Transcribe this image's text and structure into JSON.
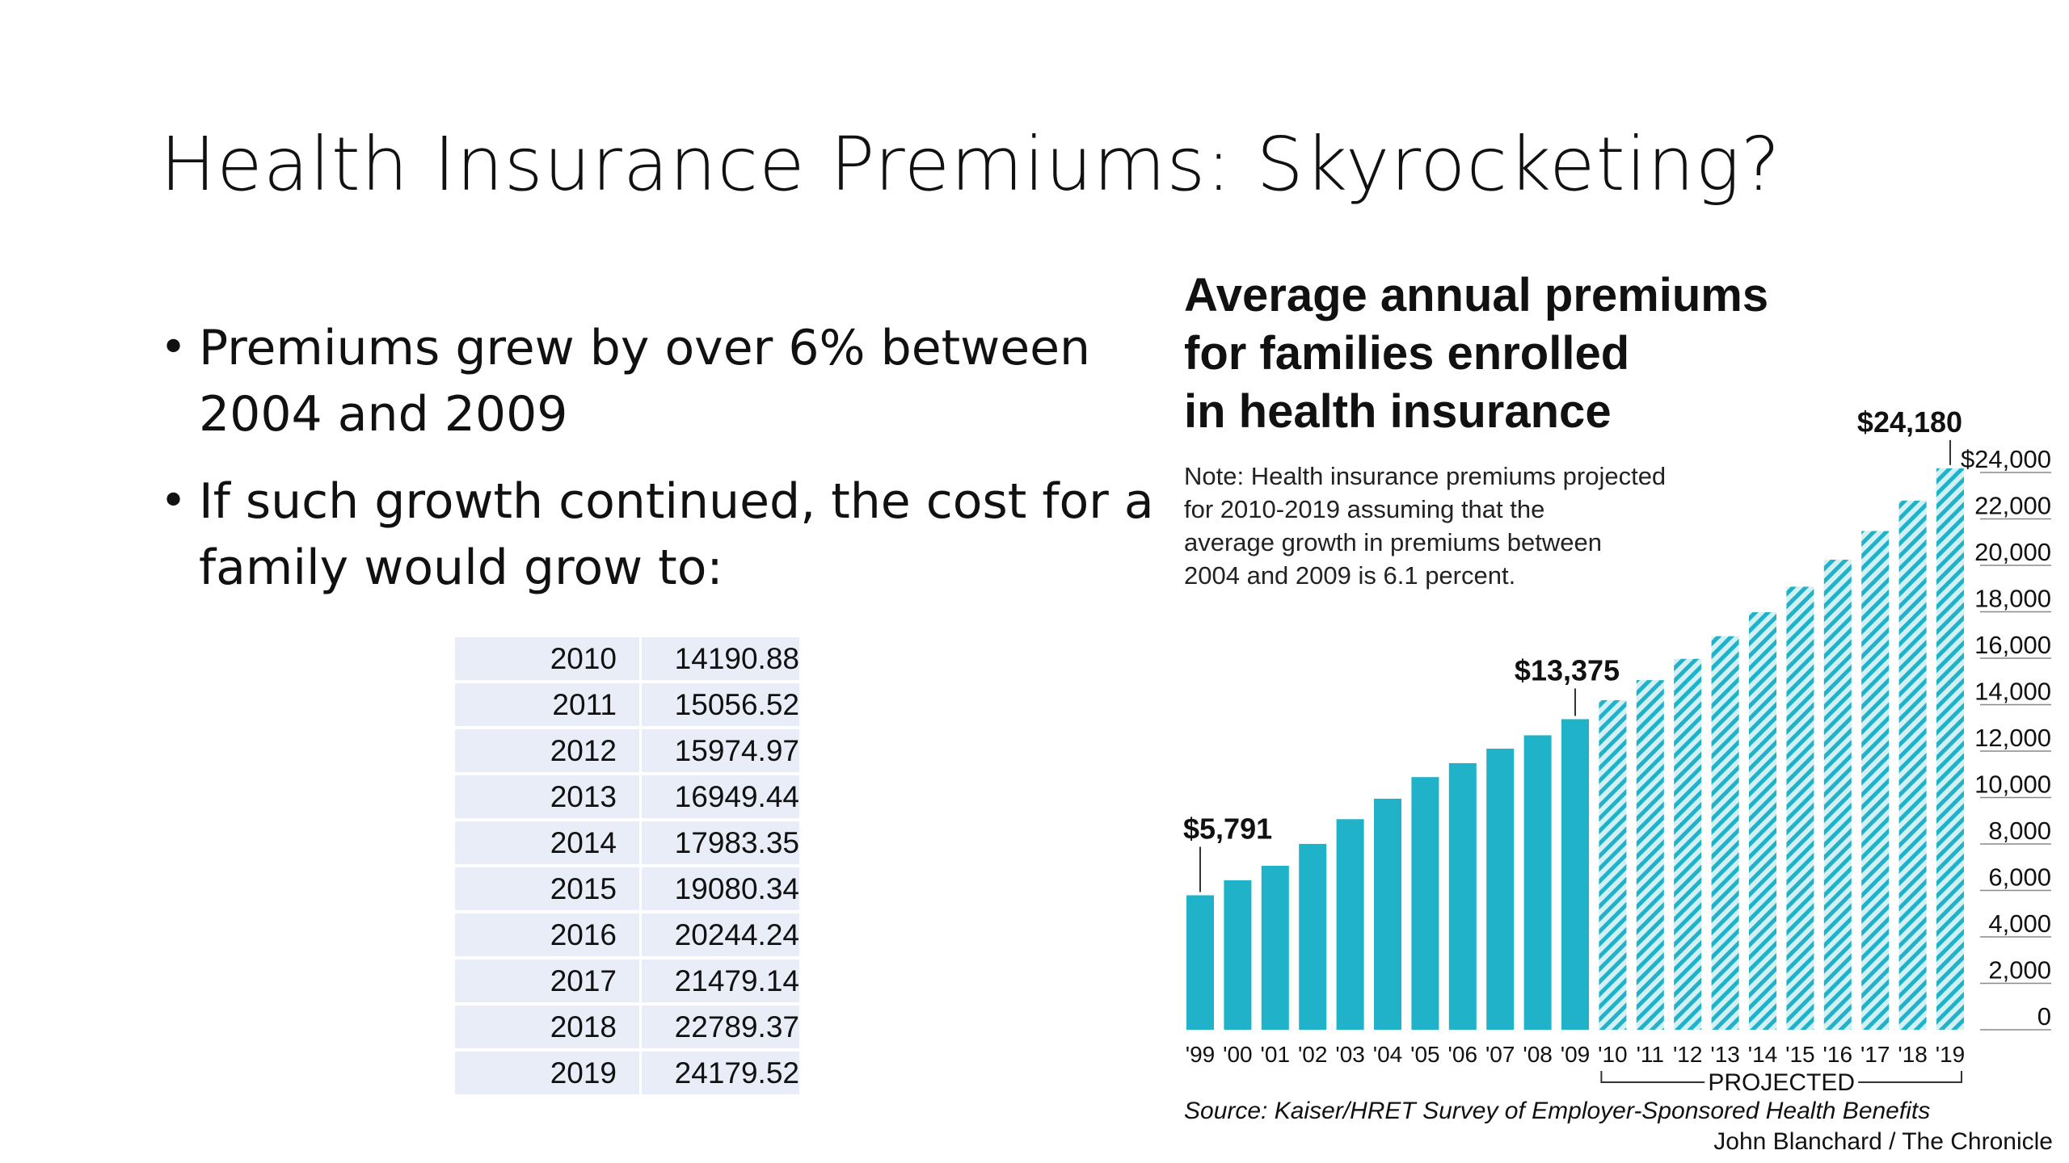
{
  "slide": {
    "title": "Health Insurance Premiums: Skyrocketing?",
    "bullets": [
      "Premiums grew by over 6% between 2004 and 2009",
      "If such growth continued, the cost for a family would grow to:"
    ]
  },
  "table": {
    "rows": [
      {
        "year": "2010",
        "value": "14190.88"
      },
      {
        "year": "2011",
        "value": "15056.52"
      },
      {
        "year": "2012",
        "value": "15974.97"
      },
      {
        "year": "2013",
        "value": "16949.44"
      },
      {
        "year": "2014",
        "value": "17983.35"
      },
      {
        "year": "2015",
        "value": "19080.34"
      },
      {
        "year": "2016",
        "value": "20244.24"
      },
      {
        "year": "2017",
        "value": "21479.14"
      },
      {
        "year": "2018",
        "value": "22789.37"
      },
      {
        "year": "2019",
        "value": "24179.52"
      }
    ]
  },
  "chart_data": {
    "type": "bar",
    "title": "Average annual premiums for families enrolled in health insurance",
    "title_lines": [
      "Average annual premiums",
      "for families enrolled",
      "in health insurance"
    ],
    "note_lines": [
      "Note: Health insurance premiums projected",
      "for 2010-2019 assuming that the",
      "average growth in premiums between",
      "2004 and 2009 is 6.1 percent."
    ],
    "categories": [
      "'99",
      "'00",
      "'01",
      "'02",
      "'03",
      "'04",
      "'05",
      "'06",
      "'07",
      "'08",
      "'09",
      "'10",
      "'11",
      "'12",
      "'13",
      "'14",
      "'15",
      "'16",
      "'17",
      "'18",
      "'19"
    ],
    "values": [
      5791,
      6438,
      7061,
      8003,
      9068,
      9950,
      10880,
      11480,
      12106,
      12680,
      13375,
      14191,
      15057,
      15975,
      16949,
      17983,
      19080,
      20244,
      21479,
      22789,
      24180
    ],
    "projected_from_index": 11,
    "projected_label": "PROJECTED",
    "annotations": [
      {
        "index": 0,
        "label": "$5,791"
      },
      {
        "index": 10,
        "label": "$13,375"
      },
      {
        "index": 20,
        "label": "$24,180"
      }
    ],
    "y_ticks": [
      {
        "value": 24000,
        "label": "$24,000"
      },
      {
        "value": 22000,
        "label": "22,000"
      },
      {
        "value": 20000,
        "label": "20,000"
      },
      {
        "value": 18000,
        "label": "18,000"
      },
      {
        "value": 16000,
        "label": "16,000"
      },
      {
        "value": 14000,
        "label": "14,000"
      },
      {
        "value": 12000,
        "label": "12,000"
      },
      {
        "value": 10000,
        "label": "10,000"
      },
      {
        "value": 8000,
        "label": "8,000"
      },
      {
        "value": 6000,
        "label": "6,000"
      },
      {
        "value": 4000,
        "label": "4,000"
      },
      {
        "value": 2000,
        "label": "2,000"
      },
      {
        "value": 0,
        "label": "0"
      }
    ],
    "ylim": [
      0,
      24000
    ],
    "source": "Source: Kaiser/HRET Survey of Employer-Sponsored Health Benefits",
    "credit": "John Blanchard / The Chronicle",
    "colors": {
      "bar": "#1fb2c9",
      "projected_stripe": "#1fb2c9",
      "projected_bg": "#d3f0f5"
    }
  }
}
